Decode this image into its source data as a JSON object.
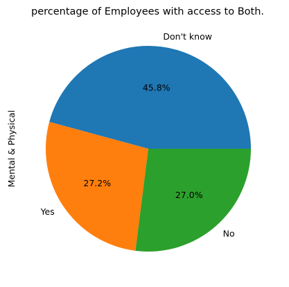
{
  "chart_data": {
    "type": "pie",
    "title": "percentage of Employees with access to Both.",
    "ylabel": "Mental & Physical",
    "xlabel": "",
    "categories": [
      "Don't know",
      "Yes",
      "No"
    ],
    "values": [
      45.8,
      27.2,
      27.0
    ],
    "value_labels": [
      "45.8%",
      "27.2%",
      "27.0%"
    ],
    "colors": [
      "#1f77b4",
      "#ff7f0e",
      "#2ca02c"
    ],
    "start_angle_deg": 0,
    "direction": "counterclockwise",
    "legend": "none"
  }
}
